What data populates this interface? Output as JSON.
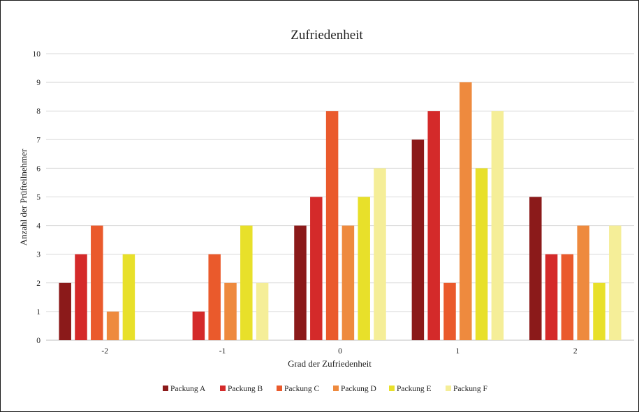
{
  "chart_data": {
    "type": "bar",
    "title": "Zufriedenheit",
    "xlabel": "Grad der Zufriedenheit",
    "ylabel": "Anzahl der Prüfteilnehmer",
    "categories": [
      "-2",
      "-1",
      "0",
      "1",
      "2"
    ],
    "ylim": [
      0,
      10
    ],
    "yticks": [
      "0",
      "1",
      "2",
      "3",
      "4",
      "5",
      "6",
      "7",
      "8",
      "9",
      "10"
    ],
    "grid": true,
    "legend_position": "bottom",
    "series": [
      {
        "name": "Packung A",
        "color": "#8b1a1a",
        "values": [
          2,
          0,
          4,
          7,
          5
        ]
      },
      {
        "name": "Packung B",
        "color": "#d42a2a",
        "values": [
          3,
          1,
          5,
          8,
          3
        ]
      },
      {
        "name": "Packung C",
        "color": "#ea5a2c",
        "values": [
          4,
          3,
          8,
          2,
          3
        ]
      },
      {
        "name": "Packung D",
        "color": "#ee8a3e",
        "values": [
          1,
          2,
          4,
          9,
          4
        ]
      },
      {
        "name": "Packung E",
        "color": "#e8e02a",
        "values": [
          3,
          4,
          5,
          6,
          2
        ]
      },
      {
        "name": "Packung F",
        "color": "#f5ee98",
        "values": [
          0,
          2,
          6,
          8,
          4
        ]
      }
    ]
  }
}
